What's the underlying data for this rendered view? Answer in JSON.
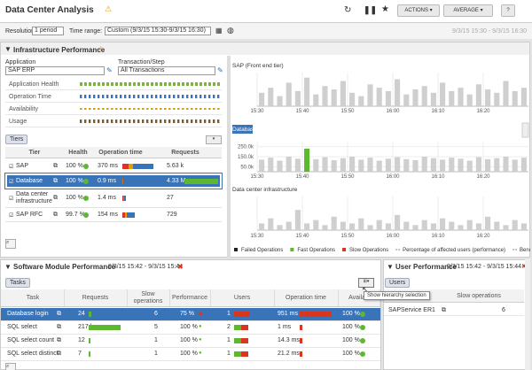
{
  "header": {
    "title": "Data Center Analysis",
    "actions": "ACTIONS",
    "average": "AVERAGE",
    "help": "?"
  },
  "toolbar": {
    "resolution_label": "Resolution:",
    "resolution": "1 period",
    "time_range_label": "Time range:",
    "time_range": "Custom (9/3/15 15:30-9/3/15 16:30)",
    "range_display": "9/3/15 15:30 - 9/3/15 16:30"
  },
  "infrastructure": {
    "title": "Infrastructure Performance",
    "application_label": "Application",
    "application": "SAP ERP",
    "transaction_label": "Transaction/Step",
    "transaction": "All Transactions",
    "metrics": [
      "Application Health",
      "Operation Time",
      "Availability",
      "Usage"
    ],
    "tab": "Tiers",
    "columns": [
      "Tier",
      "Health",
      "Operation time",
      "Requests"
    ],
    "rows": [
      [
        "SAP",
        "100 %",
        "370 ms",
        "5.63 k"
      ],
      [
        "Database",
        "100 %",
        "0.9 ms",
        "4.33 M"
      ],
      [
        "Data center infrastructure",
        "100 %",
        "1.4 ms",
        "27"
      ],
      [
        "SAP RFC",
        "99.7 %",
        "154 ms",
        "729"
      ]
    ]
  },
  "charts": {
    "time_labels": [
      "15:30",
      "15:40",
      "15:50",
      "16:00",
      "16:10",
      "16:20"
    ],
    "sap": {
      "title": "SAP (Front end tier)",
      "ylim": [
        0,
        100
      ],
      "color": "#cfcfcf",
      "values": [
        40,
        55,
        30,
        70,
        45,
        85,
        35,
        60,
        50,
        75,
        40,
        30,
        65,
        55,
        45,
        80,
        35,
        50,
        60,
        40,
        70,
        45,
        55,
        35,
        65,
        50,
        40,
        75,
        45,
        55
      ]
    },
    "database": {
      "title": "Database",
      "ylim": [
        0,
        300000
      ],
      "yticks": [
        {
          "value": 250000,
          "label": "250.0k"
        },
        {
          "value": 150000,
          "label": "150.0k"
        },
        {
          "value": 50000,
          "label": "50.0k"
        }
      ],
      "series": [
        {
          "color": "#cfcfcf",
          "values": [
            120000,
            140000,
            110000,
            150000,
            130000,
            null,
            125000,
            145000,
            115000,
            135000,
            150000,
            120000,
            140000,
            110000,
            130000,
            145000,
            125000,
            115000,
            150000,
            135000,
            120000,
            140000,
            130000,
            110000,
            145000,
            125000,
            135000,
            150000,
            120000,
            140000
          ]
        },
        {
          "color": "#5cb82e",
          "values": [
            null,
            null,
            null,
            null,
            null,
            230000,
            null,
            null,
            null,
            null,
            null,
            null,
            null,
            null,
            null,
            null,
            null,
            null,
            null,
            null,
            null,
            null,
            null,
            null,
            null,
            null,
            null,
            null,
            null,
            null
          ]
        }
      ]
    },
    "datacenter": {
      "title": "Data center infrastructure",
      "ylim": [
        0,
        100
      ],
      "color": "#cfcfcf",
      "values": [
        20,
        35,
        15,
        25,
        60,
        20,
        30,
        15,
        40,
        25,
        20,
        35,
        15,
        30,
        20,
        45,
        25,
        15,
        30,
        20,
        35,
        25,
        15,
        30,
        20,
        40,
        25,
        15,
        30,
        20
      ]
    },
    "legend": [
      {
        "name": "Failed Operations",
        "color": "#222222"
      },
      {
        "name": "Fast Operations",
        "color": "#5cb82e"
      },
      {
        "name": "Slow Operations",
        "color": "#d9351f"
      },
      {
        "name": "Percentage of affected users (performance)",
        "color": "#888888"
      },
      {
        "name": "Benchm",
        "color": "#888888"
      }
    ]
  },
  "software": {
    "title": "Software Module Performance",
    "range": "9/3/15 15:42 - 9/3/15 15:44",
    "tab": "Tasks",
    "columns": [
      "Task",
      "Requests",
      "Slow operations",
      "Performance",
      "Users",
      "Operation time",
      "Availab"
    ],
    "rows": [
      [
        "Database login",
        "24",
        "6",
        "75 %",
        "1",
        "951 ms",
        "100 %"
      ],
      [
        "SQL select",
        "217 k",
        "5",
        "100 %",
        "2",
        "1 ms",
        "100 %"
      ],
      [
        "SQL select count",
        "12",
        "1",
        "100 %",
        "1",
        "14.3 ms",
        "100 %"
      ],
      [
        "SQL select distinct",
        "7",
        "1",
        "100 %",
        "1",
        "21.2 ms",
        "100 %"
      ]
    ],
    "tooltip": "Show hierarchy selection"
  },
  "users": {
    "title": "User Performance",
    "range": "9/3/15 15:42 - 9/3/15 15:44",
    "tab": "Users",
    "columns": [
      "ime",
      "Slow operations"
    ],
    "rows": [
      [
        "SAPService ER1",
        "6"
      ]
    ]
  }
}
